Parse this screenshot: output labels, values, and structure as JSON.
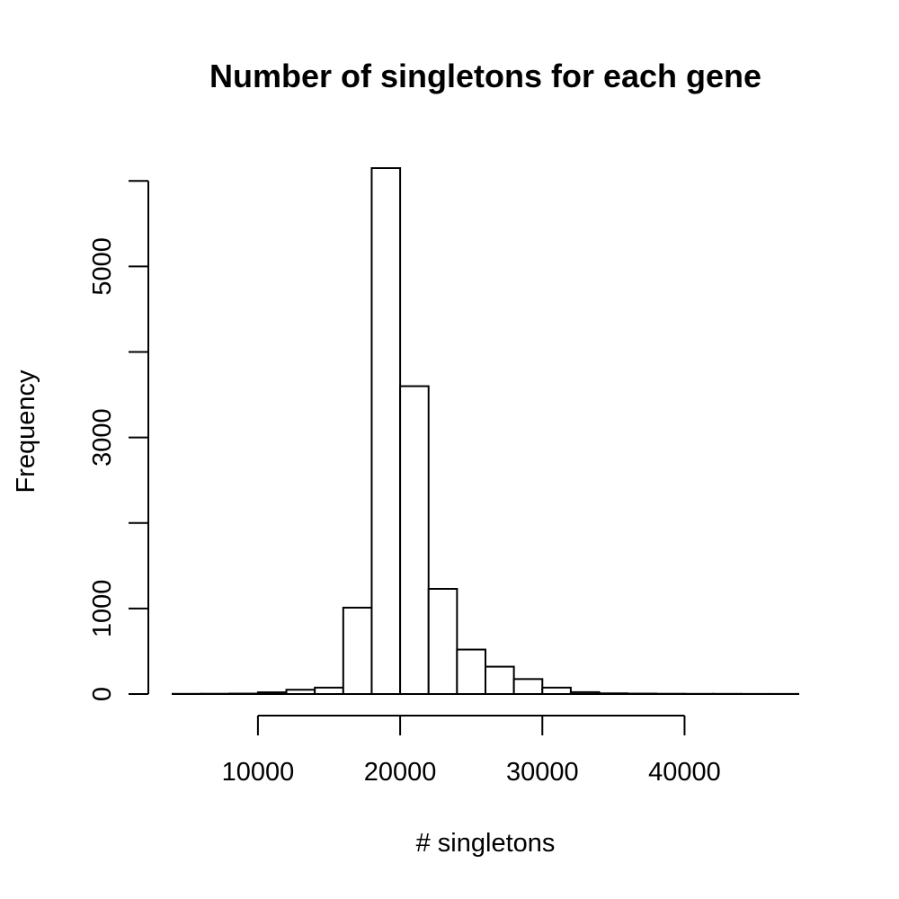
{
  "chart_data": {
    "type": "bar",
    "title": "Number of singletons for each gene",
    "xlabel": "# singletons",
    "ylabel": "Frequency",
    "xlim": [
      4000,
      48000
    ],
    "ylim": [
      0,
      6150
    ],
    "grid": false,
    "legend": "none",
    "bin_width": 2000,
    "bins": [
      {
        "start": 4000,
        "end": 6000,
        "value": 2
      },
      {
        "start": 6000,
        "end": 8000,
        "value": 3
      },
      {
        "start": 8000,
        "end": 10000,
        "value": 5
      },
      {
        "start": 10000,
        "end": 12000,
        "value": 20
      },
      {
        "start": 12000,
        "end": 14000,
        "value": 50
      },
      {
        "start": 14000,
        "end": 16000,
        "value": 75
      },
      {
        "start": 16000,
        "end": 18000,
        "value": 1010
      },
      {
        "start": 18000,
        "end": 20000,
        "value": 6150
      },
      {
        "start": 20000,
        "end": 22000,
        "value": 3600
      },
      {
        "start": 22000,
        "end": 24000,
        "value": 1230
      },
      {
        "start": 24000,
        "end": 26000,
        "value": 520
      },
      {
        "start": 26000,
        "end": 28000,
        "value": 320
      },
      {
        "start": 28000,
        "end": 30000,
        "value": 175
      },
      {
        "start": 30000,
        "end": 32000,
        "value": 75
      },
      {
        "start": 32000,
        "end": 34000,
        "value": 22
      },
      {
        "start": 34000,
        "end": 36000,
        "value": 8
      },
      {
        "start": 36000,
        "end": 38000,
        "value": 5
      },
      {
        "start": 38000,
        "end": 40000,
        "value": 3
      },
      {
        "start": 40000,
        "end": 42000,
        "value": 2
      },
      {
        "start": 42000,
        "end": 44000,
        "value": 2
      },
      {
        "start": 44000,
        "end": 46000,
        "value": 1
      },
      {
        "start": 46000,
        "end": 48000,
        "value": 1
      }
    ],
    "x_axis": {
      "range": [
        10000,
        40000
      ],
      "ticks": [
        {
          "value": 10000,
          "label": "10000"
        },
        {
          "value": 20000,
          "label": "20000"
        },
        {
          "value": 30000,
          "label": "30000"
        },
        {
          "value": 40000,
          "label": "40000"
        }
      ]
    },
    "y_axis": {
      "range": [
        0,
        6000
      ],
      "ticks": [
        {
          "value": 0,
          "label": "0"
        },
        {
          "value": 1000,
          "label": "1000"
        },
        {
          "value": 2000,
          "label": ""
        },
        {
          "value": 3000,
          "label": "3000"
        },
        {
          "value": 4000,
          "label": ""
        },
        {
          "value": 5000,
          "label": "5000"
        },
        {
          "value": 6000,
          "label": ""
        }
      ]
    }
  }
}
